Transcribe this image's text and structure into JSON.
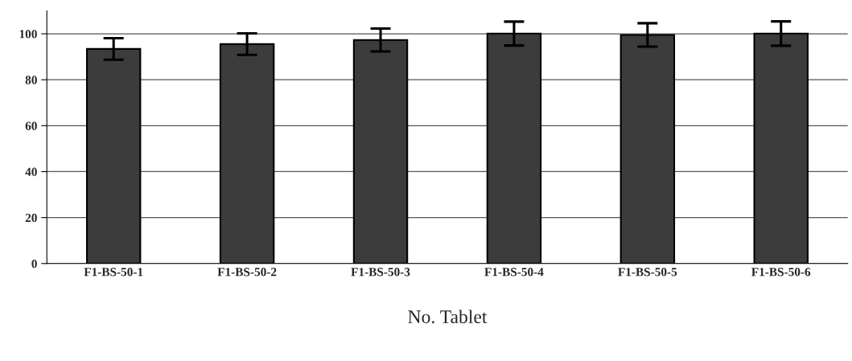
{
  "chart_data": {
    "type": "bar",
    "xlabel": "No. Tablet",
    "categories": [
      "F1-BS-50-1",
      "F1-BS-50-2",
      "F1-BS-50-3",
      "F1-BS-50-4",
      "F1-BS-50-5",
      "F1-BS-50-6"
    ],
    "values": [
      93.4,
      95.5,
      97.3,
      100.1,
      99.5,
      100.1
    ],
    "errors": [
      4.7,
      4.7,
      5.0,
      5.2,
      5.1,
      5.3
    ],
    "color": "#3c3c3c",
    "ylim": [
      0,
      110
    ],
    "yticks": [
      0,
      20,
      40,
      60,
      80,
      100
    ],
    "grid": "y"
  }
}
